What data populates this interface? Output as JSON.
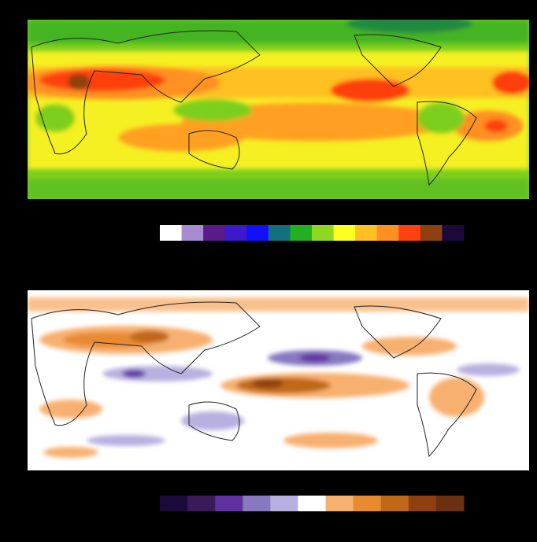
{
  "maps": [
    {
      "colorbar": {
        "colors": [
          "#ffffff",
          "#a98bd0",
          "#5a1a8a",
          "#3a1acc",
          "#1010ff",
          "#107080",
          "#20b020",
          "#90d820",
          "#ffff20",
          "#ffc020",
          "#ff9020",
          "#ff4010",
          "#904010",
          "#1a0a3a"
        ]
      }
    },
    {
      "colorbar": {
        "colors": [
          "#1a0a3a",
          "#3a1a5a",
          "#6030a0",
          "#8878c0",
          "#b8b0e0",
          "#ffffff",
          "#f8b070",
          "#e88a30",
          "#c06818",
          "#904010",
          "#6a3010"
        ]
      }
    }
  ]
}
